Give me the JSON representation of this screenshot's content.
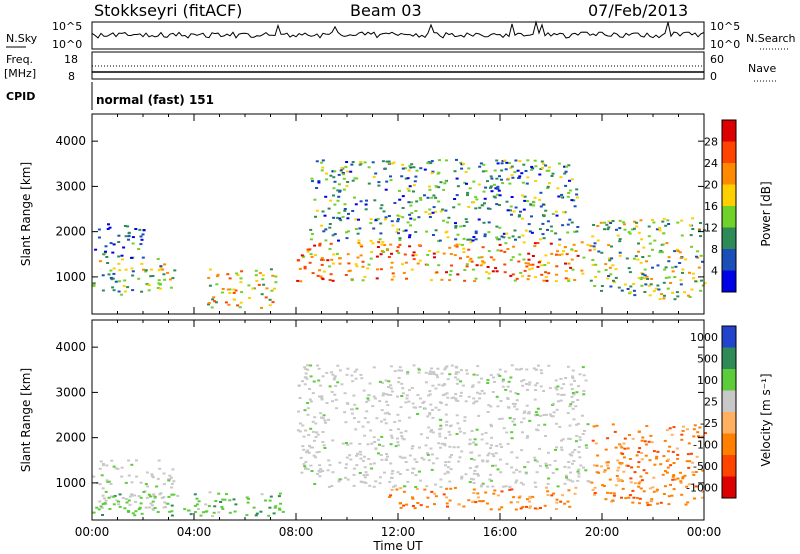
{
  "header": {
    "station": "Stokkseyri (fitACF)",
    "beam": "Beam 03",
    "date": "07/Feb/2013"
  },
  "strips": {
    "nsky": {
      "label": "N.Sky",
      "ticks_left": [
        "10^5",
        "10^0"
      ],
      "right_label": "N.Search",
      "ticks_right": [
        "10^5",
        "10^0"
      ]
    },
    "freq": {
      "label_top": "Freq.",
      "label_unit": "[MHz]",
      "ticks_left": [
        "18",
        "8"
      ],
      "right_label": "Nave",
      "ticks_right": [
        "60",
        "0"
      ]
    },
    "cpid": {
      "label": "CPID",
      "value": "normal (fast) 151"
    }
  },
  "chart_data": [
    {
      "type": "heatmap",
      "title": "",
      "xlabel": "Time UT",
      "ylabel": "Slant Range [km]",
      "xlim": [
        "00:00",
        "24:00"
      ],
      "x_ticks": [
        "00:00",
        "04:00",
        "08:00",
        "12:00",
        "16:00",
        "20:00",
        "00:00"
      ],
      "ylim": [
        180,
        4600
      ],
      "y_ticks": [
        1000,
        2000,
        3000,
        4000
      ],
      "colorbar": {
        "label": "Power [dB]",
        "ticks": [
          "28",
          "24",
          "20",
          "16",
          "12",
          "8",
          "4"
        ],
        "colors": [
          "#dd0000",
          "#ff4400",
          "#ff8a00",
          "#ffd000",
          "#6fd12a",
          "#2e8b57",
          "#1a4fb8",
          "#0000e6"
        ]
      },
      "regions": [
        {
          "t0": 0.0,
          "t1": 3.2,
          "r0": 600,
          "r1": 1400,
          "level": 3
        },
        {
          "t0": 0.0,
          "t1": 2.0,
          "r0": 1400,
          "r1": 2200,
          "level": 1
        },
        {
          "t0": 4.5,
          "t1": 7.2,
          "r0": 300,
          "r1": 1200,
          "level": 4
        },
        {
          "t0": 8.0,
          "t1": 19.5,
          "r0": 900,
          "r1": 1800,
          "level": 5
        },
        {
          "t0": 8.5,
          "t1": 19.0,
          "r0": 1800,
          "r1": 3600,
          "level": 2
        },
        {
          "t0": 19.5,
          "t1": 24.0,
          "r0": 500,
          "r1": 2300,
          "level": 3
        }
      ]
    },
    {
      "type": "heatmap",
      "title": "",
      "xlabel": "Time UT",
      "ylabel": "Slant Range [km]",
      "xlim": [
        "00:00",
        "24:00"
      ],
      "x_ticks": [
        "00:00",
        "04:00",
        "08:00",
        "12:00",
        "16:00",
        "20:00",
        "00:00"
      ],
      "ylim": [
        180,
        4600
      ],
      "y_ticks": [
        1000,
        2000,
        3000,
        4000
      ],
      "colorbar": {
        "label": "Velocity [m s⁻¹]",
        "ticks": [
          "1000",
          "500",
          "100",
          "25",
          "-25",
          "-100",
          "-500",
          "-1000"
        ],
        "colors": [
          "#2244cc",
          "#2e8b57",
          "#5ccc3a",
          "#c8c8c8",
          "#ffb060",
          "#ff8000",
          "#ff4400",
          "#dd0000"
        ]
      },
      "regions": [
        {
          "t0": 0.0,
          "t1": 3.2,
          "r0": 400,
          "r1": 1500,
          "kind": "ground"
        },
        {
          "t0": 0.0,
          "t1": 7.5,
          "r0": 250,
          "r1": 800,
          "kind": "positive"
        },
        {
          "t0": 8.0,
          "t1": 19.5,
          "r0": 900,
          "r1": 3600,
          "kind": "ground"
        },
        {
          "t0": 11.5,
          "t1": 19.0,
          "r0": 400,
          "r1": 900,
          "kind": "negative"
        },
        {
          "t0": 19.5,
          "t1": 24.0,
          "r0": 500,
          "r1": 2300,
          "kind": "negative"
        }
      ]
    }
  ]
}
